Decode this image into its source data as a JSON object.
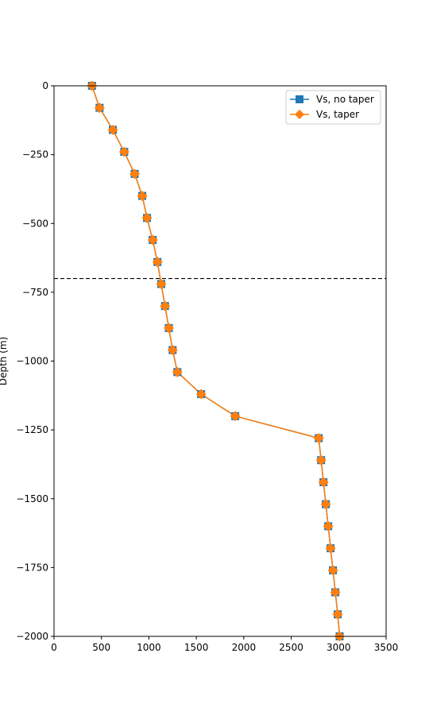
{
  "chart_data": {
    "type": "line",
    "title": "",
    "xlabel": "",
    "ylabel": "Depth (m)",
    "xlim": [
      0,
      3500
    ],
    "ylim": [
      -2000,
      0
    ],
    "xticks": [
      0,
      500,
      1000,
      1500,
      2000,
      2500,
      3000,
      3500
    ],
    "xtick_labels": [
      "0",
      "500",
      "1000",
      "1500",
      "2000",
      "2500",
      "3000",
      "3500"
    ],
    "yticks": [
      0,
      -250,
      -500,
      -750,
      -1000,
      -1250,
      -1500,
      -1750,
      -2000
    ],
    "ytick_labels": [
      "0",
      "−250",
      "−500",
      "−750",
      "−1000",
      "−1250",
      "−1500",
      "−1750",
      "−2000"
    ],
    "grid": false,
    "legend_position": "top-right",
    "reference_line": {
      "orientation": "horizontal",
      "y": -700,
      "style": "dashed",
      "color": "#000000"
    },
    "depth": [
      0,
      -80,
      -160,
      -240,
      -320,
      -400,
      -480,
      -560,
      -640,
      -720,
      -800,
      -880,
      -960,
      -1040,
      -1120,
      -1200,
      -1280,
      -1360,
      -1440,
      -1520,
      -1600,
      -1680,
      -1760,
      -1840,
      -1920,
      -2000
    ],
    "series": [
      {
        "name": "Vs, no taper",
        "marker": "square",
        "color": "#1f77b4",
        "x": [
          400,
          480,
          620,
          740,
          850,
          930,
          980,
          1040,
          1090,
          1130,
          1170,
          1210,
          1250,
          1300,
          1550,
          1910,
          2790,
          2815,
          2840,
          2865,
          2890,
          2915,
          2940,
          2965,
          2990,
          3010
        ]
      },
      {
        "name": "Vs, taper",
        "marker": "diamond",
        "color": "#ff7f0e",
        "x": [
          400,
          480,
          620,
          740,
          850,
          930,
          980,
          1040,
          1090,
          1130,
          1170,
          1210,
          1250,
          1300,
          1550,
          1910,
          2790,
          2815,
          2840,
          2865,
          2890,
          2915,
          2940,
          2965,
          2990,
          3010
        ]
      }
    ]
  }
}
